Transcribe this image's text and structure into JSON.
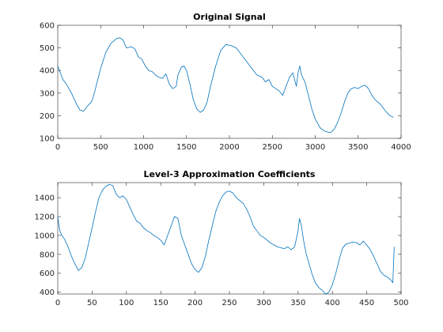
{
  "colors": {
    "series": "#0072BD",
    "axis": "#262626"
  },
  "chart_data": [
    {
      "type": "line",
      "title": "Original Signal",
      "xlabel": "",
      "ylabel": "",
      "xlim": [
        0,
        4000
      ],
      "ylim": [
        100,
        600
      ],
      "xticks": [
        0,
        500,
        1000,
        1500,
        2000,
        2500,
        3000,
        3500,
        4000
      ],
      "yticks": [
        100,
        200,
        300,
        400,
        500,
        600
      ],
      "grid": false,
      "series": [
        {
          "x": [
            0,
            60,
            100,
            160,
            220,
            260,
            300,
            340,
            400,
            440,
            500,
            560,
            620,
            680,
            720,
            760,
            800,
            860,
            900,
            940,
            980,
            1020,
            1060,
            1100,
            1140,
            1180,
            1220,
            1260,
            1300,
            1340,
            1380,
            1400,
            1440,
            1470,
            1500,
            1540,
            1580,
            1620,
            1660,
            1700,
            1740,
            1780,
            1840,
            1900,
            1960,
            2020,
            2080,
            2140,
            2200,
            2260,
            2320,
            2380,
            2420,
            2460,
            2500,
            2540,
            2580,
            2620,
            2660,
            2700,
            2740,
            2780,
            2800,
            2820,
            2840,
            2880,
            2920,
            2960,
            3000,
            3060,
            3120,
            3180,
            3220,
            3260,
            3300,
            3340,
            3380,
            3420,
            3460,
            3500,
            3540,
            3580,
            3620,
            3660,
            3700,
            3760,
            3820,
            3870,
            3910
          ],
          "y": [
            420,
            360,
            340,
            300,
            250,
            225,
            220,
            240,
            265,
            320,
            410,
            480,
            520,
            540,
            545,
            535,
            500,
            505,
            495,
            460,
            450,
            420,
            400,
            395,
            380,
            370,
            365,
            385,
            340,
            320,
            330,
            380,
            415,
            420,
            400,
            340,
            270,
            230,
            215,
            225,
            260,
            330,
            420,
            490,
            515,
            510,
            500,
            470,
            440,
            410,
            380,
            370,
            350,
            360,
            330,
            320,
            310,
            290,
            330,
            370,
            390,
            330,
            390,
            420,
            380,
            350,
            290,
            230,
            185,
            145,
            130,
            125,
            140,
            170,
            210,
            260,
            300,
            320,
            325,
            320,
            330,
            335,
            320,
            290,
            270,
            250,
            220,
            200,
            193
          ]
        }
      ]
    },
    {
      "type": "line",
      "title": "Level-3 Approximation Coefficients",
      "xlabel": "",
      "ylabel": "",
      "xlim": [
        0,
        500
      ],
      "ylim": [
        380,
        1560
      ],
      "xticks": [
        0,
        50,
        100,
        150,
        200,
        250,
        300,
        350,
        400,
        450,
        500
      ],
      "yticks": [
        400,
        600,
        800,
        1000,
        1200,
        1400
      ],
      "grid": false,
      "series": [
        {
          "x": [
            0,
            3,
            6,
            10,
            15,
            20,
            25,
            30,
            35,
            40,
            45,
            50,
            55,
            60,
            65,
            70,
            75,
            80,
            85,
            90,
            95,
            100,
            105,
            110,
            115,
            120,
            125,
            130,
            135,
            140,
            145,
            150,
            155,
            160,
            165,
            170,
            175,
            180,
            185,
            190,
            195,
            200,
            205,
            210,
            215,
            220,
            225,
            230,
            235,
            240,
            245,
            250,
            255,
            260,
            265,
            270,
            275,
            280,
            285,
            290,
            295,
            300,
            305,
            310,
            315,
            320,
            325,
            330,
            335,
            340,
            345,
            350,
            352,
            355,
            358,
            362,
            366,
            370,
            375,
            380,
            385,
            390,
            395,
            400,
            405,
            410,
            415,
            420,
            425,
            430,
            435,
            440,
            445,
            450,
            455,
            460,
            465,
            470,
            475,
            480,
            485,
            488,
            490
          ],
          "y": [
            1200,
            1050,
            1000,
            960,
            880,
            780,
            700,
            630,
            660,
            760,
            920,
            1080,
            1250,
            1400,
            1480,
            1520,
            1540,
            1530,
            1440,
            1400,
            1420,
            1380,
            1300,
            1220,
            1150,
            1130,
            1080,
            1050,
            1030,
            1000,
            980,
            950,
            900,
            1000,
            1100,
            1200,
            1180,
            1000,
            900,
            800,
            700,
            640,
            610,
            660,
            780,
            950,
            1100,
            1250,
            1350,
            1420,
            1460,
            1470,
            1450,
            1400,
            1370,
            1340,
            1280,
            1200,
            1100,
            1050,
            1000,
            980,
            950,
            920,
            900,
            880,
            870,
            860,
            880,
            850,
            880,
            1050,
            1180,
            1100,
            950,
            800,
            700,
            600,
            500,
            450,
            420,
            380,
            400,
            480,
            600,
            750,
            870,
            910,
            920,
            930,
            925,
            900,
            940,
            900,
            850,
            780,
            700,
            620,
            580,
            560,
            530,
            500,
            880
          ]
        }
      ]
    }
  ]
}
